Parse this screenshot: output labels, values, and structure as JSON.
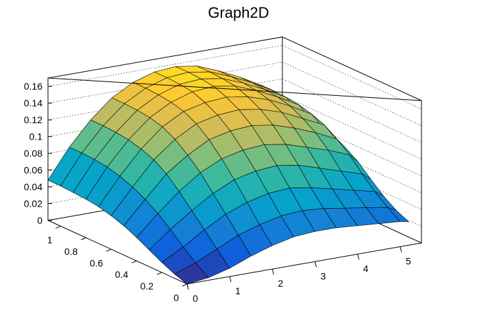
{
  "chart_data": {
    "type": "surface",
    "title": "Graph2D",
    "xlabel": "",
    "ylabel": "",
    "zlabel": "",
    "xlim": [
      0,
      5.5
    ],
    "ylim": [
      0,
      1.1
    ],
    "zlim": [
      0,
      0.17
    ],
    "x_ticks": [
      0,
      1,
      2,
      3,
      4,
      5
    ],
    "x_tick_labels": [
      "0",
      "1",
      "2",
      "3",
      "4",
      "5"
    ],
    "y_ticks": [
      0,
      0.2,
      0.4,
      0.6,
      0.8,
      1
    ],
    "y_tick_labels": [
      "0",
      "0.2",
      "0.4",
      "0.6",
      "0.8",
      "1"
    ],
    "z_ticks": [
      0,
      0.02,
      0.04,
      0.06,
      0.08,
      0.1,
      0.12,
      0.14,
      0.16
    ],
    "z_tick_labels": [
      "0",
      "0.02",
      "0.04",
      "0.06",
      "0.08",
      "0.1",
      "0.12",
      "0.14",
      "0.16"
    ],
    "grid": true,
    "palette": [
      "#352a87",
      "#0f5cdd",
      "#1481d6",
      "#06a4ca",
      "#2eb7a4",
      "#87bf77",
      "#d1bb59",
      "#fec832",
      "#f9fb0e"
    ],
    "x": [
      0,
      0.5,
      1,
      1.5,
      2,
      2.5,
      3,
      3.5,
      4,
      4.5,
      5,
      5.2
    ],
    "y": [
      0,
      0.1,
      0.2,
      0.3,
      0.4,
      0.5,
      0.6,
      0.7,
      0.8,
      0.9,
      1.0,
      1.1
    ],
    "z": [
      [
        0.0,
        0.003,
        0.01,
        0.02,
        0.028,
        0.034,
        0.036,
        0.036,
        0.034,
        0.032,
        0.03,
        0.028
      ],
      [
        0.005,
        0.014,
        0.026,
        0.038,
        0.046,
        0.052,
        0.054,
        0.052,
        0.048,
        0.044,
        0.04,
        0.035
      ],
      [
        0.012,
        0.026,
        0.042,
        0.056,
        0.066,
        0.072,
        0.074,
        0.07,
        0.064,
        0.058,
        0.052,
        0.045
      ],
      [
        0.02,
        0.04,
        0.058,
        0.074,
        0.086,
        0.092,
        0.094,
        0.09,
        0.082,
        0.074,
        0.066,
        0.058
      ],
      [
        0.028,
        0.052,
        0.074,
        0.092,
        0.104,
        0.11,
        0.112,
        0.108,
        0.1,
        0.092,
        0.082,
        0.072
      ],
      [
        0.035,
        0.062,
        0.088,
        0.106,
        0.12,
        0.126,
        0.128,
        0.124,
        0.116,
        0.106,
        0.094,
        0.082
      ],
      [
        0.04,
        0.07,
        0.098,
        0.118,
        0.132,
        0.138,
        0.14,
        0.136,
        0.128,
        0.116,
        0.104,
        0.09
      ],
      [
        0.044,
        0.076,
        0.104,
        0.126,
        0.14,
        0.146,
        0.148,
        0.144,
        0.136,
        0.124,
        0.11,
        0.096
      ],
      [
        0.046,
        0.08,
        0.108,
        0.13,
        0.144,
        0.152,
        0.154,
        0.15,
        0.14,
        0.128,
        0.114,
        0.1
      ],
      [
        0.047,
        0.082,
        0.11,
        0.132,
        0.146,
        0.154,
        0.156,
        0.152,
        0.142,
        0.13,
        0.116,
        0.102
      ],
      [
        0.048,
        0.083,
        0.111,
        0.133,
        0.147,
        0.155,
        0.157,
        0.153,
        0.143,
        0.131,
        0.117,
        0.103
      ],
      [
        0.048,
        0.083,
        0.111,
        0.133,
        0.147,
        0.155,
        0.157,
        0.153,
        0.143,
        0.131,
        0.117,
        0.103
      ]
    ]
  }
}
